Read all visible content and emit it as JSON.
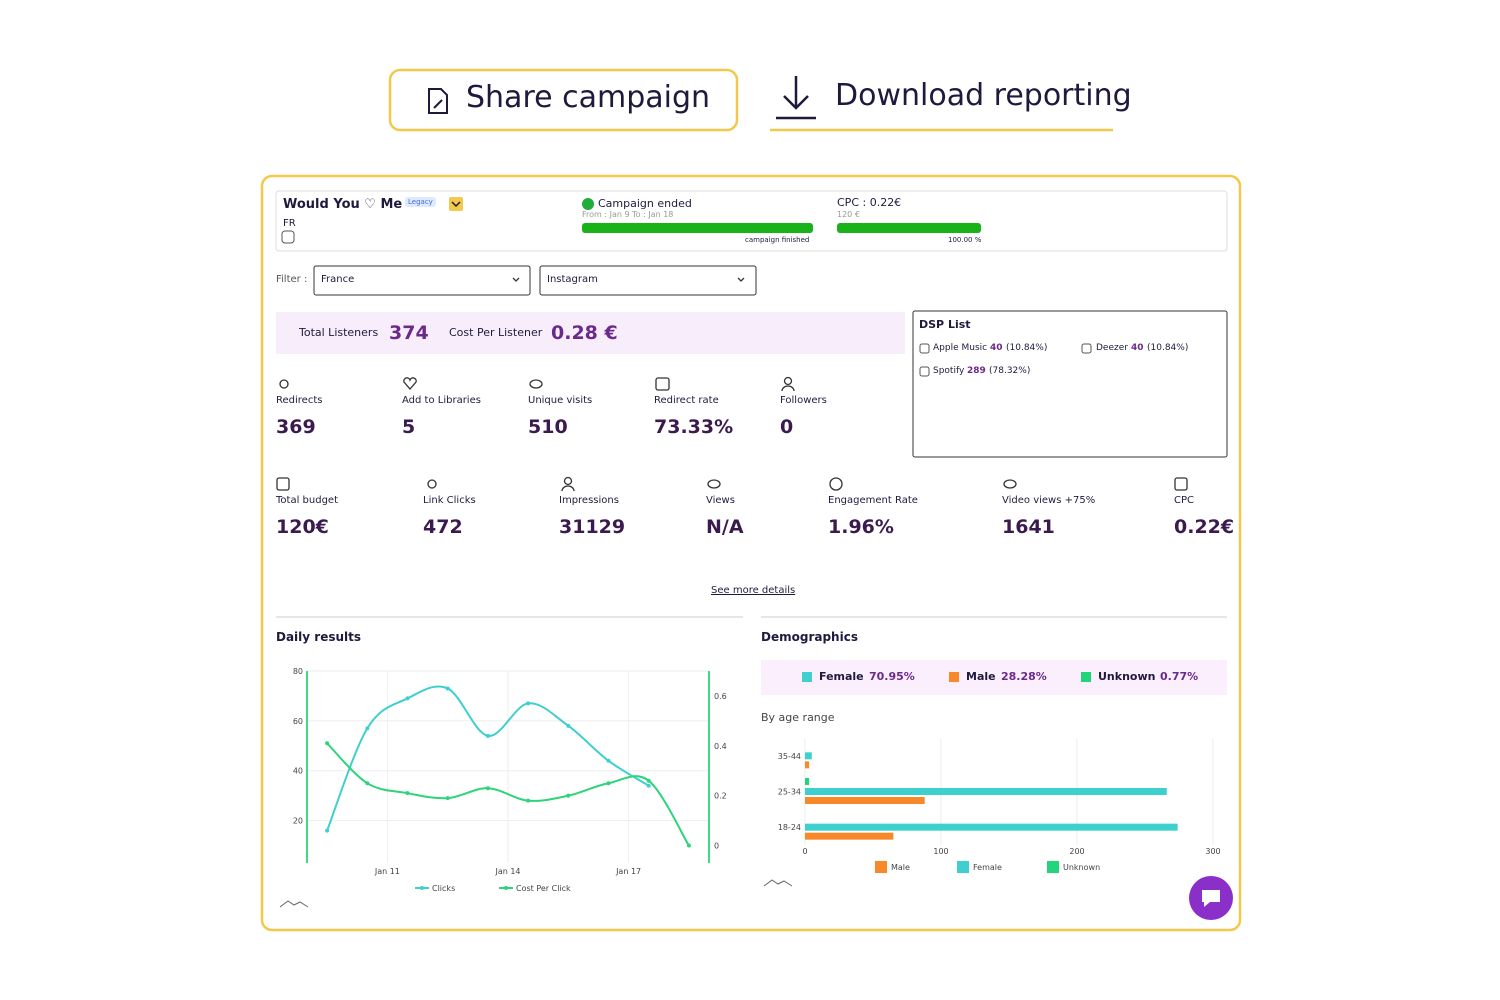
{
  "actions": {
    "share": "Share campaign",
    "download": "Download reporting"
  },
  "campaign": {
    "title": "Would You ♡ Me",
    "badge": "Legacy",
    "country": "FR",
    "status": "Campaign ended",
    "dates": "From : Jan 9 To : Jan 18",
    "progress_label": "campaign finished",
    "cpc": "CPC : 0.22€",
    "budget": "120 €",
    "budget_progress": "100.00 %"
  },
  "filter": {
    "label": "Filter :",
    "country": "France",
    "platform": "Instagram"
  },
  "totals": [
    {
      "label": "Total Listeners",
      "value": "374"
    },
    {
      "label": "Cost Per Listener",
      "value": "0.28 €"
    }
  ],
  "dsp": {
    "title": "DSP List",
    "items": [
      {
        "name": "Apple Music",
        "count": "40",
        "share": "(10.84%)"
      },
      {
        "name": "Deezer",
        "count": "40",
        "share": "(10.84%)"
      },
      {
        "name": "Spotify",
        "count": "289",
        "share": "(78.32%)"
      }
    ]
  },
  "metrics_row1": [
    {
      "label": "Redirects",
      "value": "369"
    },
    {
      "label": "Add to Libraries",
      "value": "5"
    },
    {
      "label": "Unique visits",
      "value": "510"
    },
    {
      "label": "Redirect rate",
      "value": "73.33%"
    },
    {
      "label": "Followers",
      "value": "0"
    }
  ],
  "metrics_row2": [
    {
      "label": "Total budget",
      "value": "120€"
    },
    {
      "label": "Link Clicks",
      "value": "472"
    },
    {
      "label": "Impressions",
      "value": "31129"
    },
    {
      "label": "Views",
      "value": "N/A"
    },
    {
      "label": "Engagement Rate",
      "value": "1.96%"
    },
    {
      "label": "Video views +75%",
      "value": "1641"
    },
    {
      "label": "CPC",
      "value": "0.22€"
    }
  ],
  "see_more": "See more details",
  "daily": {
    "type": "line",
    "title": "Daily results",
    "x": [
      9.5,
      10.5,
      11.5,
      12.5,
      13.5,
      14.5,
      15.5,
      16.5,
      17.5,
      18.5
    ],
    "xlim": [
      9,
      19
    ],
    "xticks": [
      {
        "value": 11,
        "label": "Jan 11"
      },
      {
        "value": 14,
        "label": "Jan 14"
      },
      {
        "value": 17,
        "label": "Jan 17"
      }
    ],
    "ylim": [
      3,
      80
    ],
    "yticks": [
      20,
      40,
      60,
      80
    ],
    "y2lim": [
      -0.07,
      0.7
    ],
    "y2ticks": [
      0,
      0.2,
      0.4,
      0.6
    ],
    "grid": true,
    "series": [
      {
        "name": "Clicks",
        "color": "#3ecfcf",
        "values": [
          16,
          57,
          69,
          73,
          54,
          67,
          58,
          44,
          34,
          null
        ]
      },
      {
        "name": "Cost Per Click",
        "color": "#2ed47a",
        "axis": "y2",
        "values": [
          0.41,
          0.25,
          0.21,
          0.19,
          0.23,
          0.18,
          0.2,
          0.25,
          0.26,
          0
        ]
      }
    ]
  },
  "demographics": {
    "title": "Demographics",
    "gender": [
      {
        "name": "Female",
        "color": "#3ecfcf",
        "value": "70.95%"
      },
      {
        "name": "Male",
        "color": "#f7892a",
        "value": "28.28%"
      },
      {
        "name": "Unknown",
        "color": "#21d67a",
        "value": "0.77%"
      }
    ],
    "age_title": "By age range",
    "chart": {
      "type": "bar",
      "orientation": "horizontal",
      "categories": [
        "18-24",
        "25-34",
        "35-44"
      ],
      "xlim": [
        0,
        300
      ],
      "xticks": [
        0,
        100,
        200,
        300
      ],
      "grid": true,
      "series": [
        {
          "name": "Male",
          "color": "#f7892a",
          "values": [
            65,
            88,
            3
          ]
        },
        {
          "name": "Female",
          "color": "#3ecfcf",
          "values": [
            274,
            266,
            5
          ]
        },
        {
          "name": "Unknown",
          "color": "#21d67a",
          "values": [
            0,
            3,
            0
          ]
        }
      ]
    }
  }
}
